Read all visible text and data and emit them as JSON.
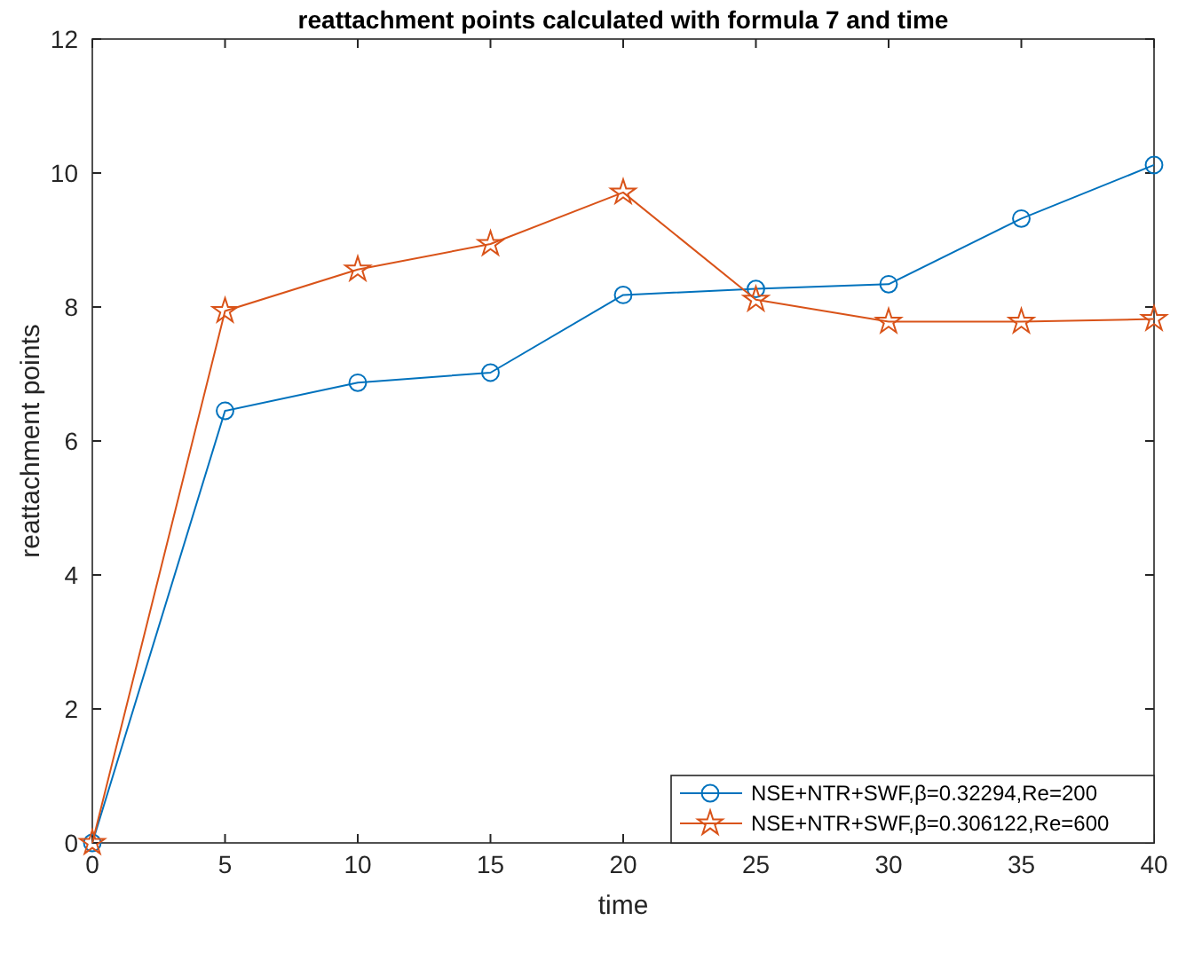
{
  "chart_data": {
    "type": "line",
    "title": "reattachment points calculated with formula 7 and time",
    "xlabel": "time",
    "ylabel": "reattachment points",
    "x": [
      0,
      5,
      10,
      15,
      20,
      25,
      30,
      35,
      40
    ],
    "xlim": [
      0,
      40
    ],
    "xticks": [
      0,
      5,
      10,
      15,
      20,
      25,
      30,
      35,
      40
    ],
    "ylim": [
      0,
      12
    ],
    "yticks": [
      0,
      2,
      4,
      6,
      8,
      10,
      12
    ],
    "grid": false,
    "legend": "bottom right",
    "line_style": "solid",
    "series": [
      {
        "name": "NSE+NTR+SWF,β=0.32294,Re=200",
        "color": "#0072bd",
        "marker": "circle",
        "values": [
          0,
          6.45,
          6.87,
          7.02,
          8.18,
          8.27,
          8.34,
          9.32,
          10.12
        ]
      },
      {
        "name": "NSE+NTR+SWF,β=0.306122,Re=600",
        "color": "#d95319",
        "marker": "star",
        "values": [
          0,
          7.94,
          8.56,
          8.94,
          9.71,
          8.11,
          7.78,
          7.78,
          7.82
        ]
      }
    ]
  }
}
